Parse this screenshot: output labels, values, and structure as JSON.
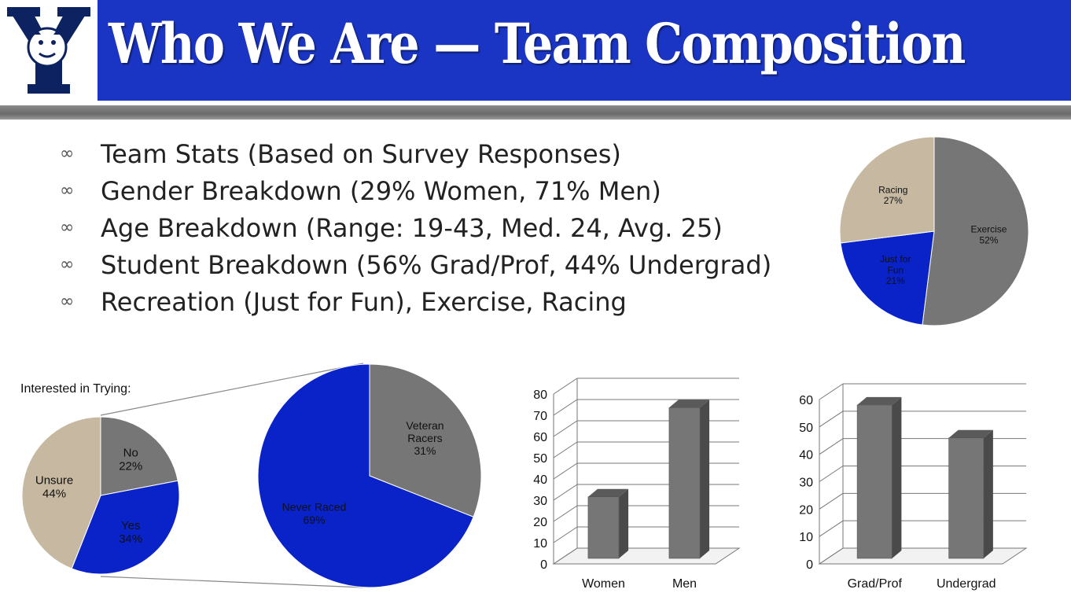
{
  "title": "Who We Are — Team Composition",
  "bullets": [
    "Team Stats (Based on Survey Responses)",
    "Gender Breakdown (29% Women, 71% Men)",
    "Age Breakdown (Range: 19-43, Med. 24, Avg. 25)",
    "Student Breakdown (56% Grad/Prof, 44% Undergrad)",
    "Recreation (Just for Fun), Exercise, Racing"
  ],
  "bullet_icon": "link-icon",
  "colors": {
    "header_blue": "#1a35c4",
    "grey": "#767676",
    "blue": "#0a23c8",
    "tan": "#c7b9a1",
    "navy": "#0c2261"
  },
  "chart_data": [
    {
      "type": "pie",
      "title": "",
      "slices": [
        {
          "label": "Exercise",
          "value": 52,
          "text": "Exercise\n52%",
          "color": "#767676"
        },
        {
          "label": "Just for Fun",
          "value": 21,
          "text": "Just for\nFun\n21%",
          "color": "#0a23c8"
        },
        {
          "label": "Racing",
          "value": 27,
          "text": "Racing\n27%",
          "color": "#c7b9a1"
        }
      ]
    },
    {
      "type": "pie",
      "title": "Interested in Trying:",
      "slices": [
        {
          "label": "No",
          "value": 22,
          "text": "No\n22%",
          "color": "#767676"
        },
        {
          "label": "Yes",
          "value": 34,
          "text": "Yes\n34%",
          "color": "#0a23c8"
        },
        {
          "label": "Unsure",
          "value": 44,
          "text": "Unsure\n44%",
          "color": "#c7b9a1"
        }
      ]
    },
    {
      "type": "pie",
      "title": "",
      "slices": [
        {
          "label": "Veteran Racers",
          "value": 31,
          "text": "Veteran\nRacers\n31%",
          "color": "#767676"
        },
        {
          "label": "Never Raced",
          "value": 69,
          "text": "Never Raced\n69%",
          "color": "#0a23c8"
        }
      ]
    },
    {
      "type": "bar",
      "title": "",
      "categories": [
        "Women",
        "Men"
      ],
      "values": [
        29,
        71
      ],
      "ylim": [
        0,
        80
      ],
      "yticks": [
        "0",
        "10",
        "20",
        "30",
        "40",
        "50",
        "60",
        "70",
        "80"
      ],
      "grid": true
    },
    {
      "type": "bar",
      "title": "",
      "categories": [
        "Grad/Prof",
        "Undergrad"
      ],
      "values": [
        56,
        44
      ],
      "ylim": [
        0,
        60
      ],
      "yticks": [
        "0",
        "10",
        "20",
        "30",
        "40",
        "50",
        "60"
      ],
      "grid": true
    }
  ]
}
